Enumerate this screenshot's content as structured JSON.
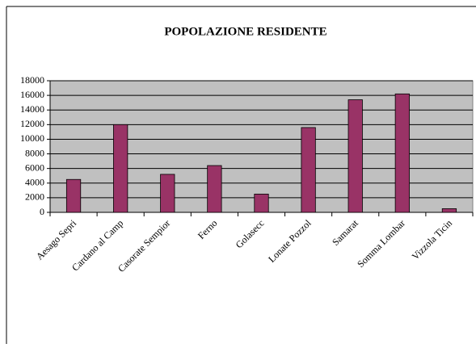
{
  "chart_data": {
    "type": "bar",
    "title": "POPOLAZIONE RESIDENTE",
    "categories": [
      "Aesago Sepri",
      "Cardano al Camp",
      "Casorate Sempior",
      "Ferno",
      "Golasecc",
      "Lonate Pozzol",
      "Samarat",
      "Somma Lombar",
      "Vizzola Ticin"
    ],
    "values": [
      4500,
      12000,
      5200,
      6400,
      2500,
      11600,
      15400,
      16200,
      500
    ],
    "color": "#993366",
    "plot_background": "#c0c0c0",
    "ylim": [
      0,
      18000
    ],
    "yticks": [
      0,
      2000,
      4000,
      6000,
      8000,
      10000,
      12000,
      14000,
      16000,
      18000
    ],
    "grid": true
  }
}
